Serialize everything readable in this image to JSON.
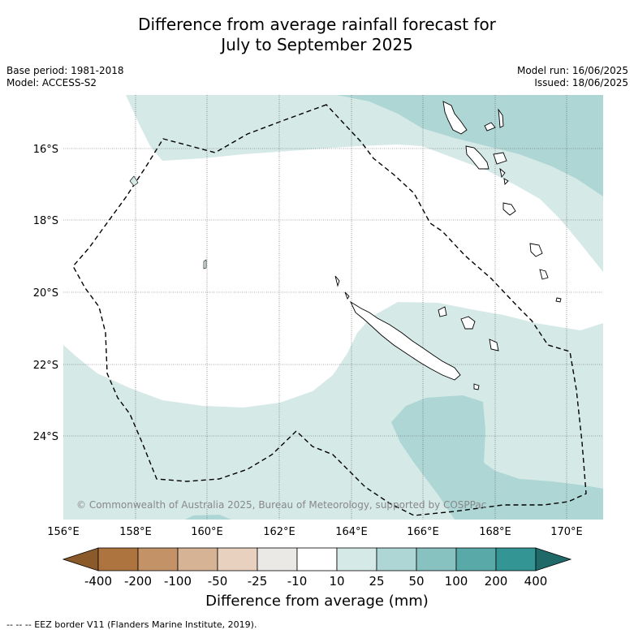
{
  "title_line1": "Difference from average rainfall forecast for",
  "title_line2": "July to September 2025",
  "meta_left": {
    "base_period": "Base period: 1981-2018",
    "model": "Model: ACCESS-S2"
  },
  "meta_right": {
    "model_run": "Model run: 16/06/2025",
    "issued": "Issued: 18/06/2025"
  },
  "map": {
    "lat_labels": [
      "16°S",
      "18°S",
      "20°S",
      "22°S",
      "24°S"
    ],
    "lon_labels": [
      "156°E",
      "158°E",
      "160°E",
      "162°E",
      "164°E",
      "166°E",
      "168°E",
      "170°E"
    ],
    "copyright": "© Commonwealth of Australia 2025, Bureau of Meteorology, supported by COSPPac",
    "colors": {
      "land_fill": "#ffffff",
      "light_teal": "#d5e9e7",
      "mid_teal": "#add6d5",
      "coast": "#000000",
      "eez": "#000000"
    }
  },
  "colorbar": {
    "title": "Difference from average (mm)",
    "ticks": [
      "-400",
      "-200",
      "-100",
      "-50",
      "-25",
      "-10",
      "10",
      "25",
      "50",
      "100",
      "200",
      "400"
    ],
    "colors": [
      "#8b5a2b",
      "#ad7440",
      "#c39267",
      "#d6b394",
      "#e8d2bf",
      "#ebe9e6",
      "#ffffff",
      "#d5e9e7",
      "#add6d5",
      "#87c1c0",
      "#59a9a8",
      "#339594",
      "#1f6a69"
    ]
  },
  "footnote": "--  --  -- EEZ border V11 (Flanders Marine Institute, 2019)."
}
